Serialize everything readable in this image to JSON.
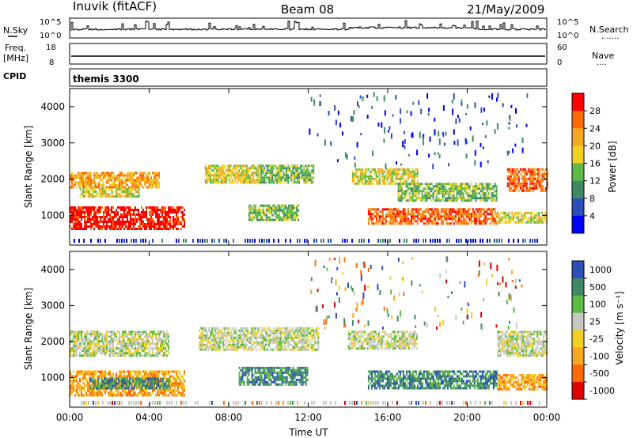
{
  "header": {
    "station": "Inuvik (fitACF)",
    "beam": "Beam 08",
    "date": "21/May/2009"
  },
  "status_panels": {
    "nsky_label": "N.Sky",
    "nsearch_label": "N.Search",
    "nsky_ticks": [
      "10^5",
      "10^0"
    ],
    "nsearch_ticks": [
      "10^5",
      "10^0"
    ],
    "freq_label_line1": "Freq.",
    "freq_label_line2": "[MHz]",
    "freq_ticks": [
      "18",
      "8"
    ],
    "nave_label": "Nave",
    "nave_ticks": [
      "60",
      "0"
    ],
    "cpid_label": "CPID",
    "cpid_value": "themis 3300"
  },
  "colors": {
    "power_scale": [
      "#0000ff",
      "#2b4fb6",
      "#3f8a64",
      "#5cba44",
      "#f0d020",
      "#f5a623",
      "#ff6a00",
      "#ff0000"
    ],
    "velocity_scale": [
      "#e00000",
      "#ff6a00",
      "#f5a623",
      "#f0d020",
      "#c8c8c0",
      "#5cba44",
      "#3f8a64",
      "#2b4fb6"
    ],
    "ground_scatter": "#c8c8c0"
  },
  "chart_data": [
    {
      "type": "heatmap",
      "name": "power",
      "xlabel": "Time UT",
      "ylabel": "Slant Range [km]",
      "x_ticks": [
        "00:00",
        "04:00",
        "08:00",
        "12:00",
        "16:00",
        "20:00",
        "00:00"
      ],
      "y_ticks": [
        1000,
        2000,
        3000,
        4000
      ],
      "xlim": [
        0,
        24
      ],
      "ylim": [
        180,
        4500
      ],
      "colorbar_label": "Power [dB]",
      "colorbar_ticks": [
        4,
        8,
        12,
        16,
        20,
        24,
        28
      ],
      "bands": [
        {
          "t0": 0.0,
          "t1": 5.8,
          "r0": 600,
          "r1": 1250,
          "level": 7
        },
        {
          "t0": 0.0,
          "t1": 4.5,
          "r0": 1800,
          "r1": 2200,
          "level": 5
        },
        {
          "t0": 0.5,
          "t1": 3.5,
          "r0": 1500,
          "r1": 1750,
          "level": 4
        },
        {
          "t0": 6.8,
          "t1": 9.6,
          "r0": 1900,
          "r1": 2400,
          "level": 4
        },
        {
          "t0": 9.6,
          "t1": 12.3,
          "r0": 1900,
          "r1": 2400,
          "level": 3
        },
        {
          "t0": 9.0,
          "t1": 11.5,
          "r0": 900,
          "r1": 1300,
          "level": 3
        },
        {
          "t0": 14.2,
          "t1": 17.5,
          "r0": 1900,
          "r1": 2300,
          "level": 4
        },
        {
          "t0": 15.0,
          "t1": 21.5,
          "r0": 750,
          "r1": 1200,
          "level": 6
        },
        {
          "t0": 16.5,
          "t1": 21.5,
          "r0": 1400,
          "r1": 1900,
          "level": 3
        },
        {
          "t0": 22.0,
          "t1": 24.0,
          "r0": 1700,
          "r1": 2300,
          "level": 6
        },
        {
          "t0": 21.5,
          "t1": 24.0,
          "r0": 800,
          "r1": 1100,
          "level": 4
        }
      ]
    },
    {
      "type": "heatmap",
      "name": "velocity",
      "xlabel": "Time UT",
      "ylabel": "Slant Range [km]",
      "x_ticks": [
        "00:00",
        "04:00",
        "08:00",
        "12:00",
        "16:00",
        "20:00",
        "00:00"
      ],
      "y_ticks": [
        1000,
        2000,
        3000,
        4000
      ],
      "xlim": [
        0,
        24
      ],
      "ylim": [
        180,
        4500
      ],
      "colorbar_label": "Velocity [m s⁻¹]",
      "colorbar_ticks": [
        1000,
        500,
        100,
        25,
        -25,
        -100,
        -500,
        -1000
      ],
      "bands": [
        {
          "t0": 0.0,
          "t1": 5.8,
          "r0": 500,
          "r1": 1200,
          "level": 2
        },
        {
          "t0": 1.0,
          "t1": 5.0,
          "r0": 700,
          "r1": 1000,
          "level": 6
        },
        {
          "t0": 0.0,
          "t1": 5.0,
          "r0": 1600,
          "r1": 2300,
          "level": 4
        },
        {
          "t0": 6.5,
          "t1": 12.5,
          "r0": 1800,
          "r1": 2400,
          "level": 4
        },
        {
          "t0": 8.5,
          "t1": 12.0,
          "r0": 800,
          "r1": 1300,
          "level": 6
        },
        {
          "t0": 15.0,
          "t1": 21.5,
          "r0": 700,
          "r1": 1200,
          "level": 6
        },
        {
          "t0": 14.0,
          "t1": 17.5,
          "r0": 1800,
          "r1": 2300,
          "level": 4
        },
        {
          "t0": 21.5,
          "t1": 24.0,
          "r0": 1600,
          "r1": 2300,
          "level": 4
        },
        {
          "t0": 21.5,
          "t1": 24.0,
          "r0": 700,
          "r1": 1100,
          "level": 2
        }
      ]
    }
  ]
}
